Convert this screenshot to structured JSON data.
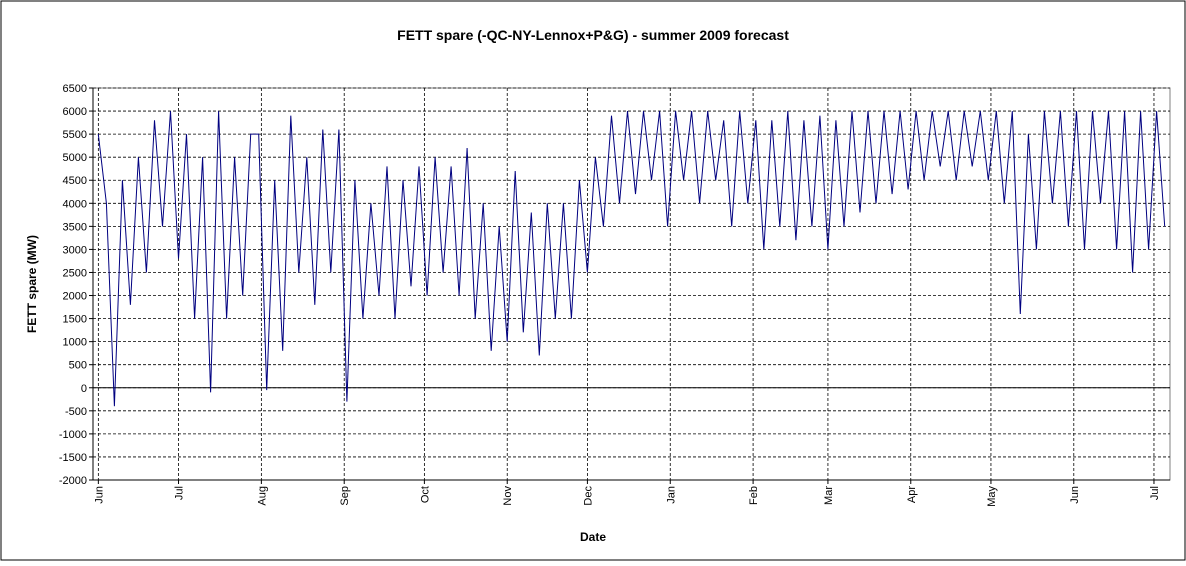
{
  "chart_data": {
    "type": "line",
    "title": "FETT spare (-QC-NY-Lennox+P&G) - summer 2009 forecast",
    "xlabel": "Date",
    "ylabel": "FETT spare (MW)",
    "color": "#000080",
    "xlim": [
      -2,
      401
    ],
    "xticks": [
      {
        "value": 0,
        "label": "Jun"
      },
      {
        "value": 30,
        "label": "Jul"
      },
      {
        "value": 61,
        "label": "Aug"
      },
      {
        "value": 92,
        "label": "Sep"
      },
      {
        "value": 122,
        "label": "Oct"
      },
      {
        "value": 153,
        "label": "Nov"
      },
      {
        "value": 183,
        "label": "Dec"
      },
      {
        "value": 214,
        "label": "Jan"
      },
      {
        "value": 245,
        "label": "Feb"
      },
      {
        "value": 273,
        "label": "Mar"
      },
      {
        "value": 304,
        "label": "Apr"
      },
      {
        "value": 334,
        "label": "May"
      },
      {
        "value": 365,
        "label": "Jun"
      },
      {
        "value": 395,
        "label": "Jul"
      }
    ],
    "ylim": [
      -2000,
      6500
    ],
    "yticks": [
      -2000,
      -1500,
      -1000,
      -500,
      0,
      500,
      1000,
      1500,
      2000,
      2500,
      3000,
      3500,
      4000,
      4500,
      5000,
      5500,
      6000,
      6500
    ],
    "grid": true,
    "x": [
      0,
      3,
      6,
      9,
      12,
      15,
      18,
      21,
      24,
      27,
      30,
      33,
      36,
      39,
      42,
      45,
      48,
      51,
      54,
      57,
      60,
      63,
      66,
      69,
      72,
      75,
      78,
      81,
      84,
      87,
      90,
      93,
      96,
      99,
      102,
      105,
      108,
      111,
      114,
      117,
      120,
      123,
      126,
      129,
      132,
      135,
      138,
      141,
      144,
      147,
      150,
      153,
      156,
      159,
      162,
      165,
      168,
      171,
      174,
      177,
      180,
      183,
      186,
      189,
      192,
      195,
      198,
      201,
      204,
      207,
      210,
      213,
      216,
      219,
      222,
      225,
      228,
      231,
      234,
      237,
      240,
      243,
      246,
      249,
      252,
      255,
      258,
      261,
      264,
      267,
      270,
      273,
      276,
      279,
      282,
      285,
      288,
      291,
      294,
      297,
      300,
      303,
      306,
      309,
      312,
      315,
      318,
      321,
      324,
      327,
      330,
      333,
      336,
      339,
      342,
      345,
      348,
      351,
      354,
      357,
      360,
      363,
      366,
      369,
      372,
      375,
      378,
      381,
      384,
      387,
      390,
      393,
      396,
      399
    ],
    "values": [
      5500,
      4000,
      -400,
      4500,
      1800,
      5000,
      2500,
      5800,
      3500,
      6000,
      2800,
      5500,
      1500,
      5000,
      -100,
      6000,
      1500,
      5000,
      2000,
      5500,
      5500,
      -50,
      4500,
      800,
      5900,
      2500,
      5000,
      1800,
      5600,
      2500,
      5600,
      -300,
      4500,
      1500,
      4000,
      2000,
      4800,
      1500,
      4500,
      2200,
      4800,
      2000,
      5000,
      2500,
      4800,
      2000,
      5200,
      1500,
      4000,
      800,
      3500,
      1000,
      4700,
      1200,
      3800,
      700,
      4000,
      1500,
      4000,
      1500,
      4500,
      2500,
      5000,
      3500,
      5900,
      4000,
      6000,
      4200,
      6000,
      4500,
      6000,
      3500,
      6000,
      4500,
      6000,
      4000,
      6000,
      4500,
      5800,
      3500,
      6000,
      4000,
      5800,
      3000,
      5800,
      3500,
      6000,
      3200,
      5800,
      3500,
      5900,
      3000,
      5800,
      3500,
      6000,
      3800,
      6000,
      4000,
      6000,
      4200,
      6000,
      4300,
      6000,
      4500,
      6000,
      4800,
      6000,
      4500,
      6000,
      4800,
      6000,
      4500,
      6000,
      4000,
      6000,
      1600,
      5500,
      3000,
      6000,
      4000,
      6000,
      3500,
      6000,
      3000,
      6000,
      4000,
      6000,
      3000,
      6000,
      2500,
      6000,
      3000,
      6000,
      3500
    ]
  }
}
